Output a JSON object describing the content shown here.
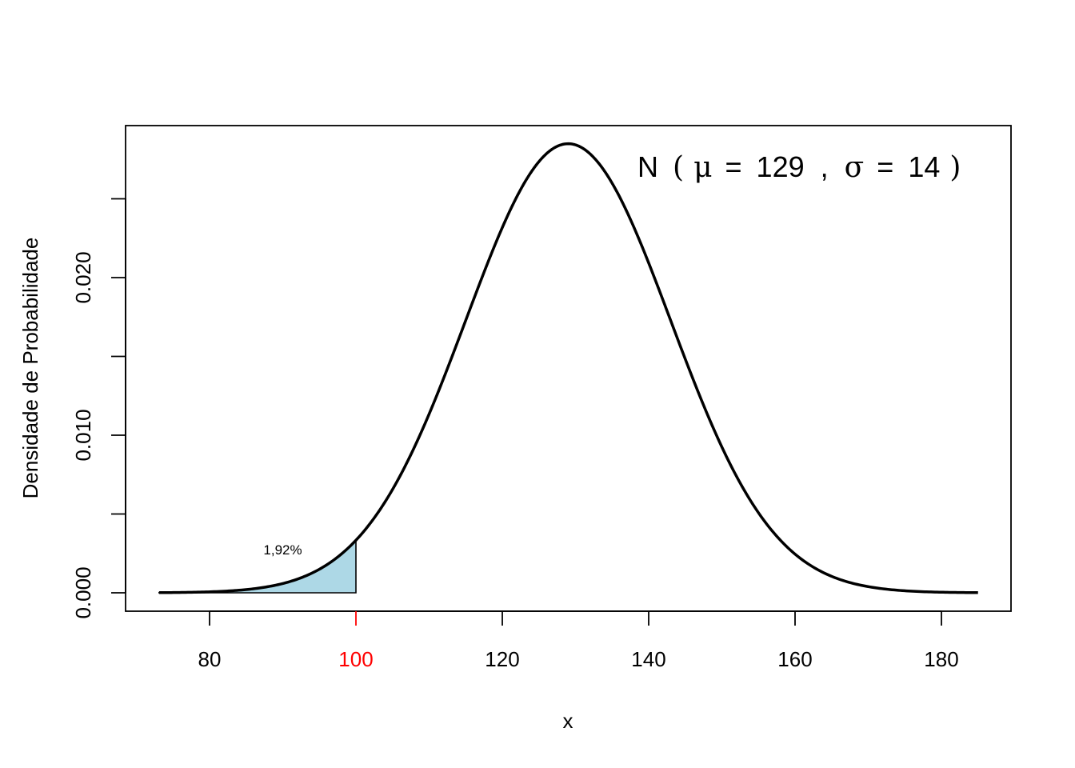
{
  "chart_data": {
    "type": "line",
    "title": "",
    "xlabel": "x",
    "ylabel": "Densidade de Probabilidade",
    "xlim": [
      73,
      185
    ],
    "ylim": [
      0,
      0.0285
    ],
    "distribution": {
      "name": "N",
      "mu": 129,
      "sigma": 14,
      "label_parts": {
        "name": "N",
        "mu_symbol": "μ",
        "mu_value": "129",
        "sigma_symbol": "σ",
        "sigma_value": "14",
        "equals": "=",
        "separator": ","
      }
    },
    "x_ticks": [
      {
        "value": 80,
        "label": "80",
        "color": "#000000"
      },
      {
        "value": 100,
        "label": "100",
        "color": "#ff0000"
      },
      {
        "value": 120,
        "label": "120",
        "color": "#000000"
      },
      {
        "value": 140,
        "label": "140",
        "color": "#000000"
      },
      {
        "value": 160,
        "label": "160",
        "color": "#000000"
      },
      {
        "value": 180,
        "label": "180",
        "color": "#000000"
      }
    ],
    "y_ticks": [
      {
        "value": 0.0,
        "label": "0.000"
      },
      {
        "value": 0.005,
        "label": ""
      },
      {
        "value": 0.01,
        "label": "0.010"
      },
      {
        "value": 0.015,
        "label": ""
      },
      {
        "value": 0.02,
        "label": "0.020"
      },
      {
        "value": 0.025,
        "label": ""
      }
    ],
    "curve_x_range": [
      73.1,
      185
    ],
    "shaded_region": {
      "from": 73.1,
      "to": 100,
      "fill": "#add8e6",
      "percentage_label": "1,92%",
      "label_x": 90,
      "label_y": 0.00275
    },
    "line_color": "#000000",
    "grid": false,
    "legend": "none"
  }
}
